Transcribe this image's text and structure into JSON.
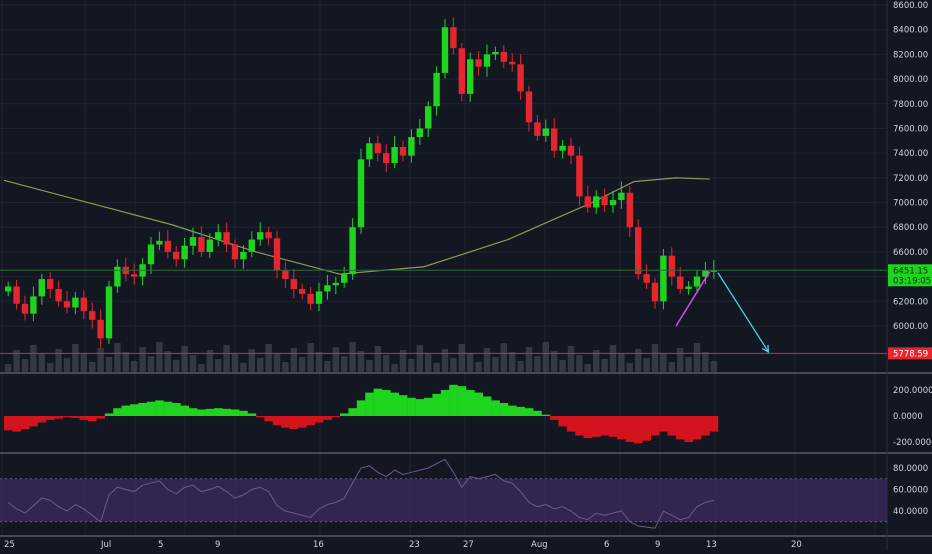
{
  "colors": {
    "background": "#131722",
    "grid": "#1f2433",
    "axis_text": "#d1d4dc",
    "candle_up": "#1fd41f",
    "candle_down": "#e5262f",
    "ma_line": "#8c9a55",
    "price_line": "#2a6b3c",
    "support_line": "#e5262f",
    "support_label_bg": "#e5262f",
    "price_label_bg": "#1fd41f",
    "trendline": "#d946ef",
    "projection_arrow": "#4dd0e1",
    "hist_up": "#1fd41f",
    "hist_down": "#d4141c",
    "rsi_band": "#3b2a5c",
    "rsi_line": "#6c5a8a",
    "volume": "#4a4f5a"
  },
  "chart_data": [
    {
      "type": "candlestick",
      "panel": "price",
      "y_ticks": [
        "8600.00",
        "8400.00",
        "8200.00",
        "8000.00",
        "7800.00",
        "7600.00",
        "7400.00",
        "7200.00",
        "7000.00",
        "6800.00",
        "6600.00",
        "6400.00",
        "6200.00",
        "6000.00"
      ],
      "ylim": [
        5700,
        8640
      ],
      "x_labels": [
        "25",
        "Jul",
        "5",
        "9",
        "16",
        "23",
        "27",
        "Aug",
        "6",
        "9",
        "13",
        "20"
      ],
      "close_path": [
        [
          0,
          6320
        ],
        [
          1,
          6180
        ],
        [
          2,
          6100
        ],
        [
          3,
          6240
        ],
        [
          4,
          6380
        ],
        [
          5,
          6300
        ],
        [
          6,
          6200
        ],
        [
          7,
          6150
        ],
        [
          8,
          6230
        ],
        [
          9,
          6120
        ],
        [
          10,
          6050
        ],
        [
          11,
          5900
        ],
        [
          12,
          6320
        ],
        [
          13,
          6480
        ],
        [
          14,
          6420
        ],
        [
          15,
          6400
        ],
        [
          16,
          6500
        ],
        [
          17,
          6660
        ],
        [
          18,
          6690
        ],
        [
          19,
          6600
        ],
        [
          20,
          6540
        ],
        [
          21,
          6650
        ],
        [
          22,
          6720
        ],
        [
          23,
          6600
        ],
        [
          24,
          6700
        ],
        [
          25,
          6760
        ],
        [
          26,
          6660
        ],
        [
          27,
          6540
        ],
        [
          28,
          6600
        ],
        [
          29,
          6700
        ],
        [
          30,
          6760
        ],
        [
          31,
          6710
        ],
        [
          32,
          6450
        ],
        [
          33,
          6380
        ],
        [
          34,
          6300
        ],
        [
          35,
          6260
        ],
        [
          36,
          6180
        ],
        [
          37,
          6280
        ],
        [
          38,
          6330
        ],
        [
          39,
          6350
        ],
        [
          40,
          6420
        ],
        [
          41,
          6800
        ],
        [
          42,
          7350
        ],
        [
          43,
          7480
        ],
        [
          44,
          7400
        ],
        [
          45,
          7320
        ],
        [
          46,
          7450
        ],
        [
          47,
          7380
        ],
        [
          48,
          7530
        ],
        [
          49,
          7600
        ],
        [
          50,
          7780
        ],
        [
          51,
          8050
        ],
        [
          52,
          8420
        ],
        [
          53,
          8250
        ],
        [
          54,
          7880
        ],
        [
          55,
          8160
        ],
        [
          56,
          8100
        ],
        [
          57,
          8200
        ],
        [
          58,
          8220
        ],
        [
          59,
          8140
        ],
        [
          60,
          8120
        ],
        [
          61,
          7900
        ],
        [
          62,
          7650
        ],
        [
          63,
          7540
        ],
        [
          64,
          7600
        ],
        [
          65,
          7420
        ],
        [
          66,
          7460
        ],
        [
          67,
          7380
        ],
        [
          68,
          7050
        ],
        [
          69,
          6960
        ],
        [
          70,
          7050
        ],
        [
          71,
          6980
        ],
        [
          72,
          7020
        ],
        [
          73,
          7080
        ],
        [
          74,
          6800
        ],
        [
          75,
          6420
        ],
        [
          76,
          6350
        ],
        [
          77,
          6200
        ],
        [
          78,
          6570
        ],
        [
          79,
          6400
        ],
        [
          80,
          6300
        ],
        [
          81,
          6320
        ],
        [
          82,
          6400
        ],
        [
          83,
          6450
        ],
        [
          84,
          6451.15
        ]
      ],
      "support_level": 5778.59,
      "support_label": "5778.59",
      "last_price": 6451.15,
      "last_price_label": "6451.15",
      "countdown": "03:19:05",
      "moving_average": [
        [
          0,
          7180
        ],
        [
          10,
          7000
        ],
        [
          20,
          6820
        ],
        [
          30,
          6600
        ],
        [
          40,
          6420
        ],
        [
          50,
          6480
        ],
        [
          60,
          6700
        ],
        [
          70,
          7000
        ],
        [
          75,
          7170
        ],
        [
          80,
          7200
        ],
        [
          84,
          7190
        ]
      ],
      "annotations": [
        {
          "type": "trendline",
          "from": [
            80,
            6000
          ],
          "to": [
            84,
            6440
          ]
        },
        {
          "type": "arrow",
          "from": [
            85,
            6430
          ],
          "to": [
            91,
            5790
          ]
        }
      ]
    },
    {
      "type": "bar",
      "panel": "oscillator",
      "y_ticks": [
        "200.0000",
        "0.0000",
        "-200.0000"
      ],
      "ylim": [
        -260,
        340
      ],
      "values": [
        -110,
        -120,
        -100,
        -80,
        -50,
        -30,
        -20,
        -10,
        -15,
        -30,
        -40,
        -20,
        20,
        60,
        80,
        90,
        100,
        110,
        120,
        110,
        100,
        80,
        60,
        50,
        55,
        60,
        55,
        50,
        40,
        20,
        -10,
        -40,
        -70,
        -90,
        -100,
        -90,
        -70,
        -50,
        -30,
        -10,
        20,
        60,
        120,
        180,
        210,
        200,
        180,
        160,
        140,
        130,
        140,
        170,
        200,
        240,
        230,
        200,
        180,
        150,
        120,
        100,
        80,
        70,
        60,
        40,
        10,
        -30,
        -80,
        -120,
        -150,
        -170,
        -160,
        -150,
        -160,
        -180,
        -200,
        -210,
        -190,
        -150,
        -120,
        -150,
        -180,
        -200,
        -180,
        -150,
        -120
      ]
    },
    {
      "type": "line",
      "panel": "rsi",
      "y_ticks": [
        "80.0000",
        "60.0000",
        "40.0000"
      ],
      "ylim": [
        20,
        90
      ],
      "band": [
        30,
        70
      ],
      "values": [
        48,
        42,
        38,
        45,
        52,
        50,
        44,
        40,
        46,
        42,
        36,
        30,
        55,
        62,
        60,
        58,
        64,
        66,
        68,
        60,
        56,
        62,
        64,
        58,
        60,
        63,
        58,
        52,
        55,
        60,
        62,
        58,
        45,
        40,
        38,
        36,
        34,
        42,
        46,
        48,
        52,
        66,
        80,
        82,
        76,
        72,
        78,
        74,
        76,
        78,
        80,
        84,
        88,
        76,
        62,
        72,
        70,
        72,
        74,
        68,
        66,
        58,
        48,
        44,
        46,
        42,
        44,
        40,
        34,
        32,
        38,
        36,
        38,
        40,
        30,
        26,
        25,
        24,
        40,
        36,
        32,
        34,
        44,
        48,
        50
      ]
    }
  ]
}
